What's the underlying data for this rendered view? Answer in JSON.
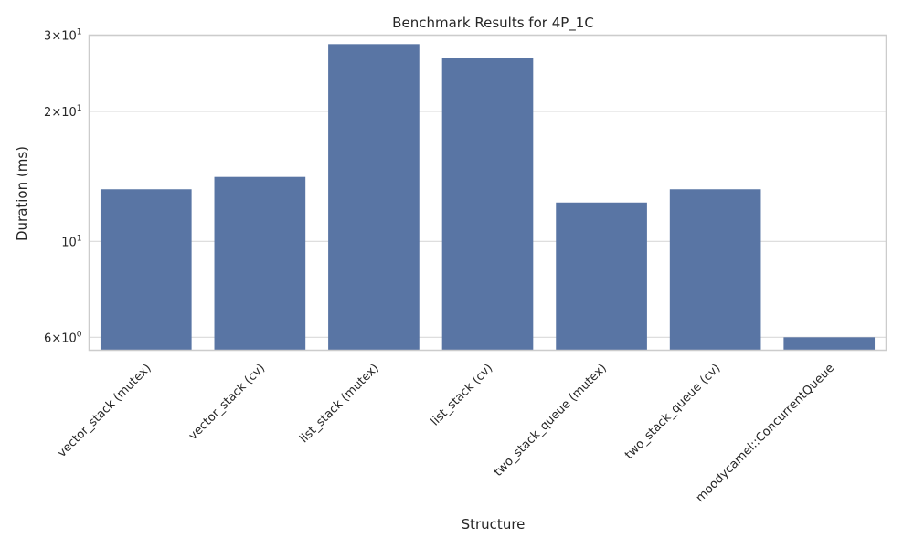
{
  "chart_data": {
    "type": "bar",
    "title": "Benchmark Results for 4P_1C",
    "xlabel": "Structure",
    "ylabel": "Duration (ms)",
    "yscale": "log",
    "ylim": [
      5.6,
      30
    ],
    "categories": [
      "vector_stack (mutex)",
      "vector_stack (cv)",
      "list_stack (mutex)",
      "list_stack (cv)",
      "two_stack_queue (mutex)",
      "two_stack_queue (cv)",
      "moodycamel::ConcurrentQueue"
    ],
    "values": [
      13.2,
      14.1,
      28.6,
      26.5,
      12.3,
      13.2,
      6.0
    ],
    "yticks": [
      {
        "value": 6,
        "mantissa": "6",
        "base": "10",
        "exp": "0"
      },
      {
        "value": 10,
        "mantissa": "",
        "base": "10",
        "exp": "1"
      },
      {
        "value": 20,
        "mantissa": "2",
        "base": "10",
        "exp": "1"
      },
      {
        "value": 30,
        "mantissa": "3",
        "base": "10",
        "exp": "1"
      }
    ],
    "colors": {
      "bar": "#5975a4",
      "grid": "#d9d9d9",
      "frame": "#cccccc",
      "text": "#262626"
    }
  }
}
